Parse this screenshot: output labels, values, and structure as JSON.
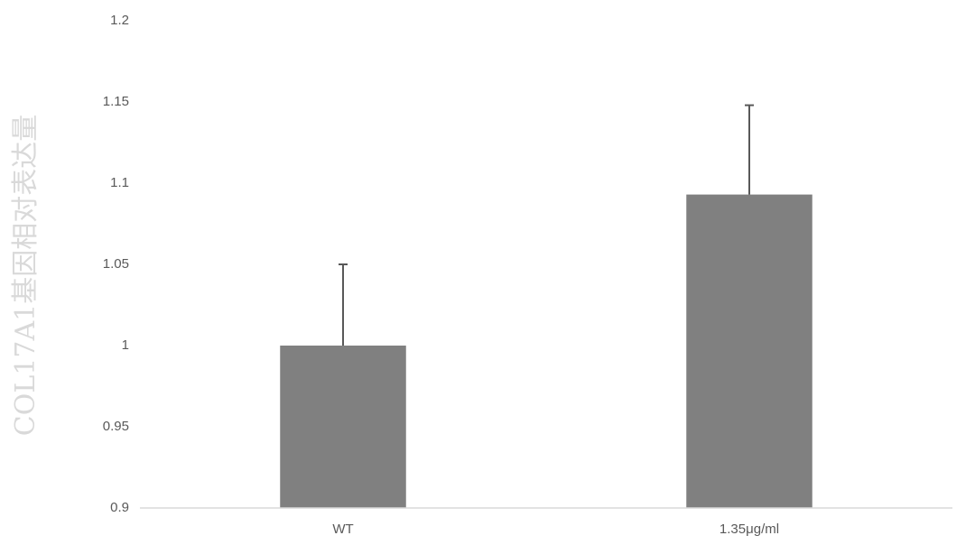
{
  "chart_data": {
    "type": "bar",
    "y_label": "COL17A1基因相对表达量",
    "categories": [
      "WT",
      "1.35μg/ml"
    ],
    "values": [
      1.0,
      1.093
    ],
    "errors": [
      0.05,
      0.055
    ],
    "color": "#808080",
    "error_color": "#595959",
    "ylim": [
      0.9,
      1.2
    ],
    "yticks": [
      0.9,
      0.95,
      1,
      1.05,
      1.1,
      1.15,
      1.2
    ],
    "grid": false
  }
}
